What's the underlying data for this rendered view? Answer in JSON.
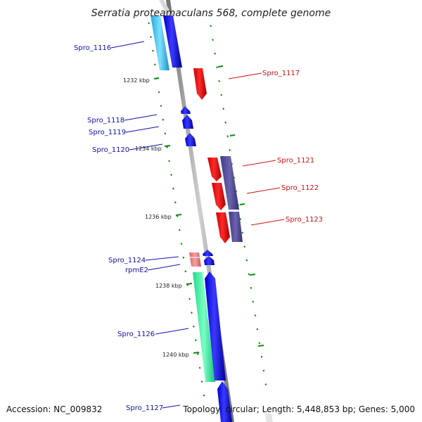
{
  "title": "Serratia proteamaculans 568, complete genome",
  "footer": {
    "accession": "Accession: NC_009832",
    "topology": "Topology: circular; Length: 5,448,853 bp; Genes: 5,000"
  },
  "colors": {
    "label_reverse": "#1010aa",
    "label_forward": "#cc1111",
    "tick": "#118811",
    "backbone": "#8a8a8a"
  },
  "ticks": [
    {
      "label": "1232 kbp"
    },
    {
      "label": "1234 kbp"
    },
    {
      "label": "1236 kbp"
    },
    {
      "label": "1238 kbp"
    },
    {
      "label": "1240 kbp"
    }
  ],
  "genes": [
    {
      "name": "Spro_1116",
      "strand": "reverse"
    },
    {
      "name": "Spro_1117",
      "strand": "forward"
    },
    {
      "name": "Spro_1118",
      "strand": "reverse"
    },
    {
      "name": "Spro_1119",
      "strand": "reverse"
    },
    {
      "name": "Spro_1120",
      "strand": "reverse"
    },
    {
      "name": "Spro_1121",
      "strand": "forward"
    },
    {
      "name": "Spro_1122",
      "strand": "forward"
    },
    {
      "name": "Spro_1123",
      "strand": "forward"
    },
    {
      "name": "Spro_1124",
      "strand": "reverse"
    },
    {
      "name": "rpmE2",
      "strand": "reverse"
    },
    {
      "name": "Spro_1126",
      "strand": "reverse"
    },
    {
      "name": "Spro_1127",
      "strand": "reverse"
    }
  ]
}
